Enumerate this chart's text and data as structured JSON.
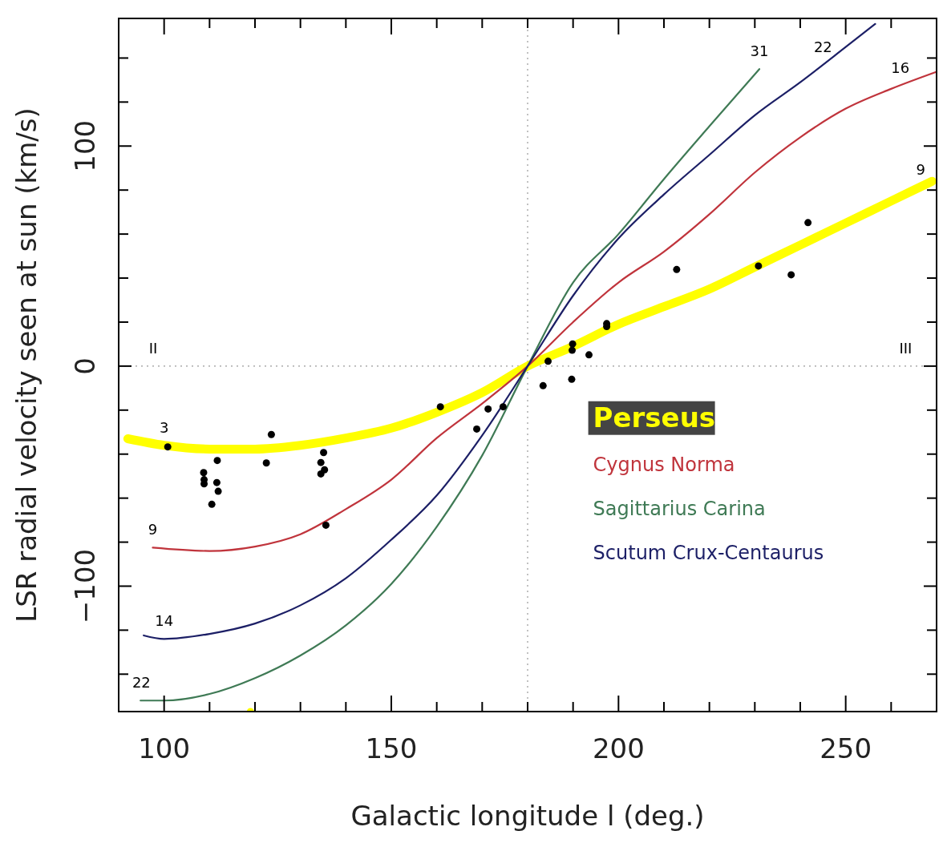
{
  "chart_data": {
    "type": "line",
    "xlabel": "Galactic longitude l (deg.)",
    "ylabel": "LSR radial velocity seen at sun (km/s)",
    "xlim": [
      90,
      270
    ],
    "ylim": [
      -157,
      158
    ],
    "xticks": [
      100,
      {
        "value": 110,
        "label": null
      },
      {
        "value": 120,
        "label": null
      },
      {
        "value": 130,
        "label": null
      },
      {
        "value": 140,
        "label": null
      },
      150,
      {
        "value": 160,
        "label": null
      },
      {
        "value": 170,
        "label": null
      },
      {
        "value": 180,
        "label": null
      },
      {
        "value": 190,
        "label": null
      },
      200,
      {
        "value": 210,
        "label": null
      },
      {
        "value": 220,
        "label": null
      },
      {
        "value": 230,
        "label": null
      },
      {
        "value": 240,
        "label": null
      },
      250,
      {
        "value": 260,
        "label": null
      }
    ],
    "yticks": [
      {
        "value": -140,
        "label": null
      },
      {
        "value": -120,
        "label": null
      },
      {
        "value": -100,
        "label": "−100"
      },
      {
        "value": -80,
        "label": null
      },
      {
        "value": -60,
        "label": null
      },
      {
        "value": -40,
        "label": null
      },
      {
        "value": -20,
        "label": null
      },
      0,
      {
        "value": 20,
        "label": null
      },
      {
        "value": 40,
        "label": null
      },
      {
        "value": 60,
        "label": null
      },
      {
        "value": 80,
        "label": null
      },
      100,
      {
        "value": 120,
        "label": null
      },
      {
        "value": 140,
        "label": null
      }
    ],
    "grid": false,
    "legend": "bottom right",
    "line_style": "solid",
    "series": [
      {
        "name": "Perseus",
        "color": "#ffff00",
        "x": [
          92,
          100,
          110,
          120,
          130,
          140,
          150,
          160,
          170,
          180,
          190,
          200,
          210,
          220,
          230,
          240,
          250,
          260,
          269
        ],
        "values": [
          -33,
          -36,
          -37.7,
          -37.7,
          -36,
          -32.7,
          -28.2,
          -21,
          -12,
          0,
          9,
          19,
          27,
          35,
          45,
          55,
          65,
          75,
          84
        ]
      },
      {
        "name": "Cygnus Norma",
        "color": "#c0343c",
        "x": [
          97.5,
          110,
          120,
          130,
          140,
          150,
          160,
          170,
          180,
          190,
          200,
          210,
          220,
          230,
          240,
          250,
          260,
          269.8
        ],
        "values": [
          -82.5,
          -84,
          -82,
          -76.4,
          -65,
          -51.6,
          -32.7,
          -17,
          0,
          20,
          38,
          52,
          69,
          88,
          104,
          117,
          126,
          133.6
        ]
      },
      {
        "name": "Sagittarius Carina",
        "color": "#3f7a55",
        "x": [
          94.8,
          100,
          110,
          120,
          130,
          140,
          150,
          160,
          170,
          180,
          190,
          200,
          210,
          220,
          231
        ],
        "values": [
          -152,
          -152,
          -149,
          -141.8,
          -131.5,
          -117.8,
          -99,
          -73,
          -40.6,
          0,
          38,
          60,
          85,
          109,
          135
        ]
      },
      {
        "name": "Scutum Crux-Centaurus",
        "color": "#1c1f66",
        "x": [
          95.5,
          100,
          110,
          120,
          130,
          140,
          150,
          160,
          170,
          180,
          190,
          200,
          210,
          220,
          230,
          240,
          250,
          256.5
        ],
        "values": [
          -122.4,
          -124,
          -121.7,
          -117,
          -108.7,
          -96.4,
          -78.9,
          -58.8,
          -31.5,
          0,
          32,
          58,
          78,
          96,
          114,
          129,
          145,
          155.5
        ]
      },
      {
        "type": "scatter",
        "marker": "circle",
        "color": "#000000",
        "x": [
          100.8,
          108.7,
          108.8,
          108.8,
          111.7,
          111.6,
          111.9,
          110.5,
          123.6,
          122.5,
          135.1,
          134.5,
          135.3,
          134.5,
          135.6,
          160.8,
          168.8,
          171.3,
          174.6,
          183.4,
          184.5,
          189.9,
          189.8,
          189.7,
          193.5,
          197.4,
          197.4,
          212.8,
          230.8,
          238,
          241.7
        ],
        "values": [
          -36.7,
          -48.4,
          -51.6,
          -53.5,
          -42.9,
          -52.9,
          -56.9,
          -62.8,
          -31.1,
          -44,
          -39.3,
          -43.8,
          -47.1,
          -49,
          -72.3,
          -18.5,
          -28.6,
          -19.5,
          -18.5,
          -8.9,
          2.2,
          10.1,
          7.2,
          -6,
          5.1,
          19.3,
          18,
          43.9,
          45.5,
          41.5,
          65.2
        ]
      },
      {
        "type": "scatter",
        "marker": "circle",
        "color": "#ffff00",
        "x": [
          119
        ],
        "values": [
          -157
        ]
      }
    ],
    "ref_lines": [
      {
        "axis": "x",
        "value": 180,
        "color": "#999999",
        "line_style": "dotted"
      },
      {
        "axis": "y",
        "value": 0,
        "color": "#999999",
        "line_style": "dotted"
      }
    ],
    "annotations": [
      {
        "text": "II",
        "x": 97.6,
        "y": 0
      },
      {
        "text": "III",
        "x": 263.2,
        "y": 0
      },
      {
        "text": "3",
        "x": 100,
        "y": -36
      },
      {
        "text": "9",
        "x": 97.5,
        "y": -82.5
      },
      {
        "text": "14",
        "x": 100,
        "y": -124
      },
      {
        "text": "22",
        "x": 95,
        "y": -152
      },
      {
        "text": "31",
        "x": 231,
        "y": 135
      },
      {
        "text": "22",
        "x": 245,
        "y": 137
      },
      {
        "text": "16",
        "x": 262,
        "y": 127.5
      },
      {
        "text": "9",
        "x": 266.5,
        "y": 81
      }
    ]
  }
}
